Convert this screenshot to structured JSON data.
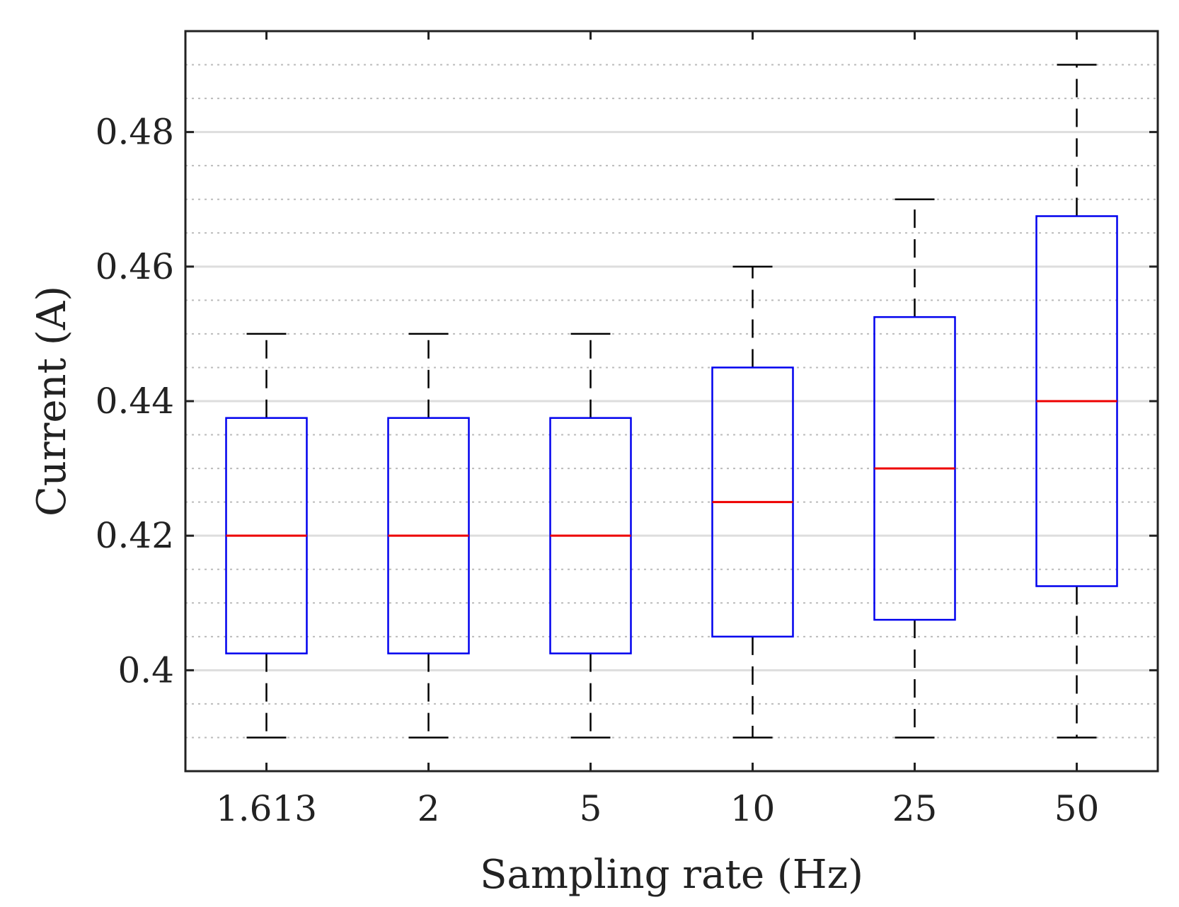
{
  "chart_data": {
    "type": "box",
    "xlabel": "Sampling rate (Hz)",
    "ylabel": "Current (A)",
    "ylim": [
      0.385,
      0.495
    ],
    "yticks": [
      0.4,
      0.42,
      0.44,
      0.46,
      0.48
    ],
    "ytick_labels": [
      "0.4",
      "0.42",
      "0.44",
      "0.46",
      "0.48"
    ],
    "minor_grid_step": 0.005,
    "grid": true,
    "categories": [
      "1.613",
      "2",
      "5",
      "10",
      "25",
      "50"
    ],
    "boxes": [
      {
        "category": "1.613",
        "whisker_low": 0.39,
        "q1": 0.4025,
        "median": 0.42,
        "q3": 0.4375,
        "whisker_high": 0.45
      },
      {
        "category": "2",
        "whisker_low": 0.39,
        "q1": 0.4025,
        "median": 0.42,
        "q3": 0.4375,
        "whisker_high": 0.45
      },
      {
        "category": "5",
        "whisker_low": 0.39,
        "q1": 0.4025,
        "median": 0.42,
        "q3": 0.4375,
        "whisker_high": 0.45
      },
      {
        "category": "10",
        "whisker_low": 0.39,
        "q1": 0.405,
        "median": 0.425,
        "q3": 0.445,
        "whisker_high": 0.46
      },
      {
        "category": "25",
        "whisker_low": 0.39,
        "q1": 0.4075,
        "median": 0.43,
        "q3": 0.4525,
        "whisker_high": 0.47
      },
      {
        "category": "50",
        "whisker_low": 0.39,
        "q1": 0.4125,
        "median": 0.44,
        "q3": 0.4675,
        "whisker_high": 0.49
      }
    ],
    "colors": {
      "box": "#0000ee",
      "median": "#ee0000",
      "whisker": "#000000",
      "grid_major": "#dddddd",
      "grid_minor": "#bbbbbb",
      "axes": "#222222"
    }
  }
}
